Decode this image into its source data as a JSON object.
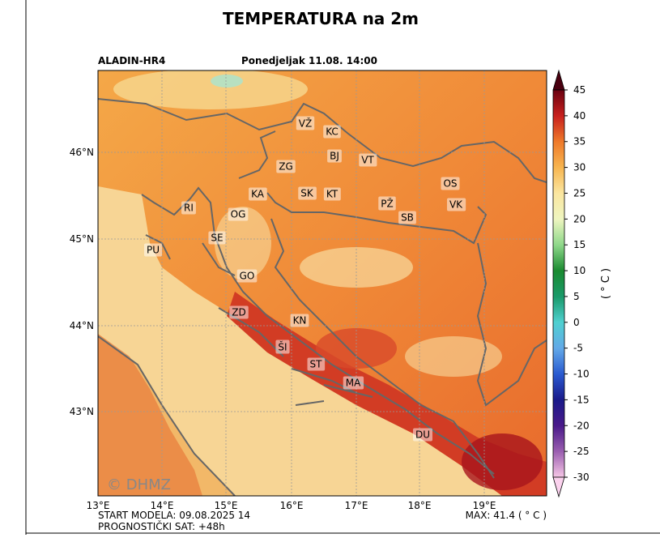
{
  "header": {
    "title": "TEMPERATURA na 2m",
    "model": "ALADIN-HR4",
    "valid_time": "Ponedjeljak 11.08. 14:00"
  },
  "map": {
    "lon_ticks": [
      "13°E",
      "14°E",
      "15°E",
      "16°E",
      "17°E",
      "18°E",
      "19°E"
    ],
    "lat_ticks": [
      "46°N",
      "45°N",
      "44°N",
      "43°N"
    ],
    "cities": [
      "VŽ",
      "KC",
      "BJ",
      "VT",
      "ZG",
      "KA",
      "SK",
      "KT",
      "OS",
      "PŽ",
      "VK",
      "SB",
      "RI",
      "OG",
      "SE",
      "PU",
      "GO",
      "ZD",
      "KN",
      "ŠI",
      "ST",
      "MA",
      "DU"
    ],
    "watermark": "© DHMZ"
  },
  "colorbar": {
    "label": "( ° C )",
    "ticks": [
      45,
      40,
      35,
      30,
      25,
      20,
      15,
      10,
      5,
      0,
      -5,
      -10,
      -15,
      -20,
      -25,
      -30
    ]
  },
  "footer": {
    "start": "START MODELA: 09.08.2025 14",
    "forecast_hour": "PROGNOSTIČKI SAT: +48h",
    "max": "MAX: 41.4 ( ° C )"
  }
}
